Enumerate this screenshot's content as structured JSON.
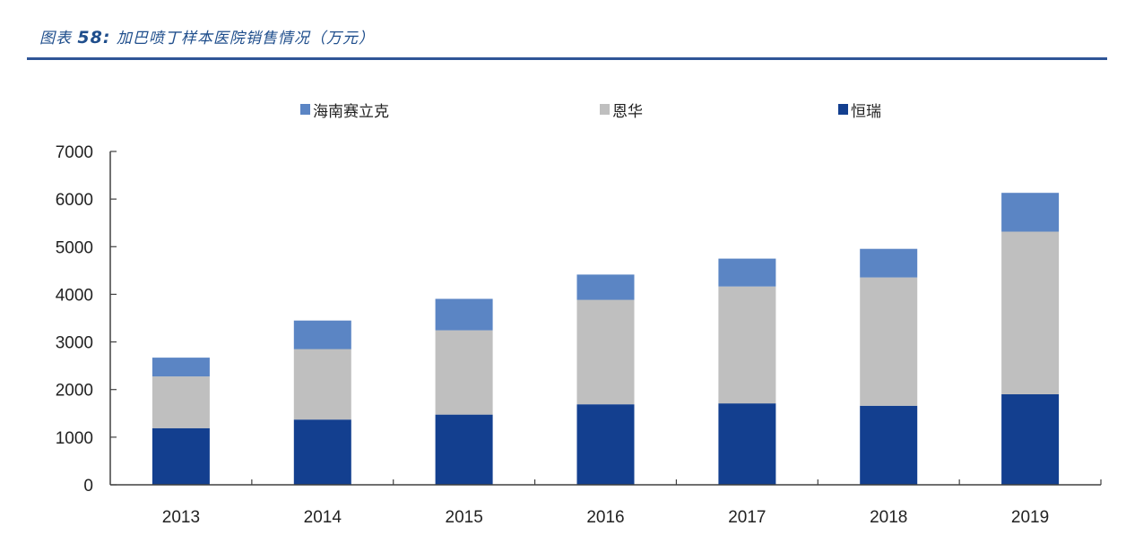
{
  "figure": {
    "label": "图表",
    "number": "58:",
    "title": "加巴喷丁样本医院销售情况（万元）",
    "rule_color": "#2f5597"
  },
  "legend": [
    {
      "label": "海南赛立克",
      "color": "#5b85c4"
    },
    {
      "label": "恩华",
      "color": "#bfbfbf"
    },
    {
      "label": "恒瑞",
      "color": "#133f8f"
    }
  ],
  "chart_data": {
    "type": "bar",
    "stacked": true,
    "title": "加巴喷丁样本医院销售情况（万元）",
    "xlabel": "",
    "ylabel": "",
    "ylim": [
      0,
      7000
    ],
    "yticks": [
      0,
      1000,
      2000,
      3000,
      4000,
      5000,
      6000,
      7000
    ],
    "grid": false,
    "legend_position": "top",
    "categories": [
      "2013",
      "2014",
      "2015",
      "2016",
      "2017",
      "2018",
      "2019"
    ],
    "series": [
      {
        "name": "恒瑞",
        "color": "#133f8f",
        "values": [
          1190,
          1370,
          1475,
          1690,
          1710,
          1660,
          1900
        ]
      },
      {
        "name": "恩华",
        "color": "#bfbfbf",
        "values": [
          1085,
          1480,
          1770,
          2195,
          2455,
          2695,
          3415
        ]
      },
      {
        "name": "海南赛立克",
        "color": "#5b85c4",
        "values": [
          395,
          600,
          660,
          530,
          585,
          600,
          815
        ]
      }
    ]
  }
}
